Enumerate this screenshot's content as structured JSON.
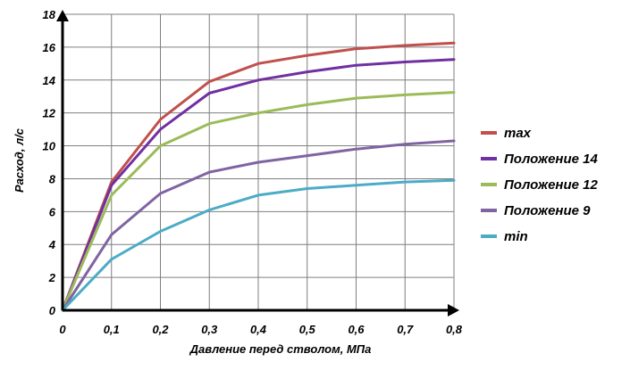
{
  "chart_data": {
    "type": "line",
    "title": "",
    "xlabel": "Давление перед стволом, МПа",
    "ylabel": "Расход, л/с",
    "xlim": [
      0,
      0.8
    ],
    "ylim": [
      0,
      18
    ],
    "grid": true,
    "legend_position": "right",
    "x": [
      0,
      0.1,
      0.2,
      0.3,
      0.4,
      0.5,
      0.6,
      0.7,
      0.8
    ],
    "x_tick_labels": [
      "0",
      "0,1",
      "0,2",
      "0,3",
      "0,4",
      "0,5",
      "0,6",
      "0,7",
      "0,8"
    ],
    "y_ticks": [
      0,
      2,
      4,
      6,
      8,
      10,
      12,
      14,
      16,
      18
    ],
    "series": [
      {
        "name": "max",
        "color": "#c0504d",
        "values": [
          0,
          7.8,
          11.6,
          13.9,
          15.0,
          15.5,
          15.9,
          16.1,
          16.25
        ]
      },
      {
        "name": "Положение 14",
        "color": "#7030a0",
        "values": [
          0,
          7.6,
          11.0,
          13.2,
          14.0,
          14.5,
          14.9,
          15.1,
          15.25
        ]
      },
      {
        "name": "Положение 12",
        "color": "#9bbb59",
        "values": [
          0,
          7.0,
          10.0,
          11.35,
          12.0,
          12.5,
          12.9,
          13.1,
          13.25
        ]
      },
      {
        "name": "Положение 9",
        "color": "#8064a2",
        "values": [
          0,
          4.6,
          7.1,
          8.4,
          9.0,
          9.4,
          9.8,
          10.1,
          10.3
        ]
      },
      {
        "name": "min",
        "color": "#4bacc6",
        "values": [
          0,
          3.1,
          4.8,
          6.1,
          7.0,
          7.4,
          7.6,
          7.8,
          7.9
        ]
      }
    ]
  }
}
